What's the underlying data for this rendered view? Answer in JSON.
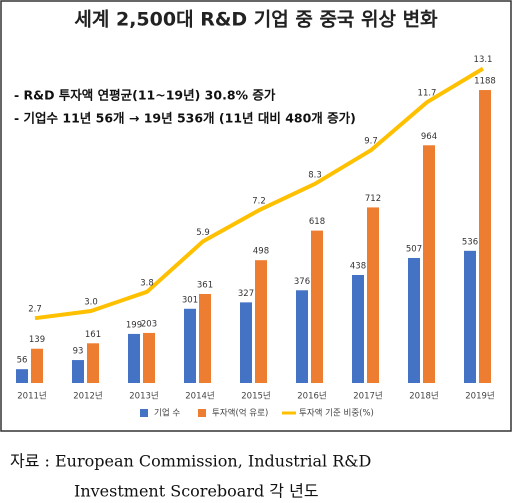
{
  "chart_data": {
    "type": "bar",
    "title": "세계 2,500대 R&D 기업 중 중국 위상 변화",
    "annotations": [
      "- R&D 투자액 연평균(11~19년) 30.8% 증가",
      "- 기업수 11년 56개 → 19년 536개 (11년 대비 480개 증가)"
    ],
    "categories": [
      "2011년",
      "2012년",
      "2013년",
      "2014년",
      "2015년",
      "2016년",
      "2017년",
      "2018년",
      "2019년"
    ],
    "series": [
      {
        "name": "기업 수",
        "color": "#4472c4",
        "type": "bar",
        "values": [
          56,
          93,
          199,
          301,
          327,
          376,
          438,
          507,
          536
        ]
      },
      {
        "name": "투자액(억 유로)",
        "color": "#ed7d31",
        "type": "bar",
        "values": [
          139,
          161,
          203,
          361,
          498,
          618,
          712,
          964,
          1188
        ]
      },
      {
        "name": "투자액 기준 비중(%)",
        "color": "#ffc000",
        "type": "line",
        "axis": "y2",
        "values": [
          2.7,
          3.0,
          3.8,
          5.9,
          7.2,
          8.3,
          9.7,
          11.7,
          13.1
        ],
        "value_labels": [
          "2.7",
          "3.0",
          "3.8",
          "5.9",
          "7.2",
          "8.3",
          "9.7",
          "11.7",
          "13.1"
        ]
      }
    ],
    "source": [
      "자료 : European Commission, Industrial R&D",
      "Investment Scoreboard 각 년도"
    ]
  }
}
